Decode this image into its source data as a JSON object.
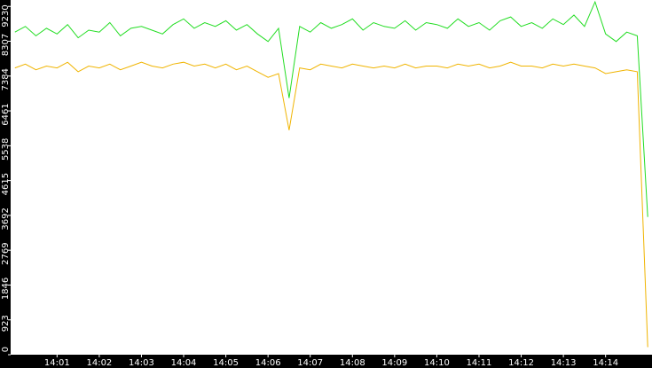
{
  "chart_data": {
    "type": "line",
    "x": [
      840,
      840.25,
      840.5,
      840.75,
      841,
      841.25,
      841.5,
      841.75,
      842,
      842.25,
      842.5,
      842.75,
      843,
      843.25,
      843.5,
      843.75,
      844,
      844.25,
      844.5,
      844.75,
      845,
      845.25,
      845.5,
      845.75,
      846,
      846.25,
      846.5,
      846.75,
      847,
      847.25,
      847.5,
      847.75,
      848,
      848.25,
      848.5,
      848.75,
      849,
      849.25,
      849.5,
      849.75,
      850,
      850.25,
      850.5,
      850.75,
      851,
      851.25,
      851.5,
      851.75,
      852,
      852.25,
      852.5,
      852.75,
      853,
      853.25,
      853.5,
      853.75,
      854,
      854.25,
      854.5,
      854.75,
      855
    ],
    "series": [
      {
        "color": "#22dd22",
        "values": [
          8550,
          8700,
          8450,
          8650,
          8500,
          8750,
          8400,
          8600,
          8550,
          8800,
          8450,
          8650,
          8700,
          8600,
          8500,
          8750,
          8900,
          8650,
          8800,
          8700,
          8850,
          8600,
          8750,
          8500,
          8300,
          8650,
          6800,
          8700,
          8550,
          8800,
          8650,
          8750,
          8900,
          8600,
          8800,
          8700,
          8650,
          8850,
          8600,
          8800,
          8750,
          8650,
          8900,
          8700,
          8800,
          8600,
          8850,
          8950,
          8700,
          8800,
          8650,
          8900,
          8750,
          9000,
          8700,
          9350,
          8500,
          8300,
          8550,
          8450,
          3650
        ]
      },
      {
        "color": "#f0b400",
        "values": [
          7600,
          7700,
          7550,
          7650,
          7600,
          7750,
          7500,
          7650,
          7600,
          7700,
          7550,
          7650,
          7750,
          7650,
          7600,
          7700,
          7750,
          7650,
          7700,
          7600,
          7700,
          7550,
          7650,
          7500,
          7350,
          7450,
          5950,
          7600,
          7550,
          7700,
          7650,
          7600,
          7700,
          7650,
          7600,
          7650,
          7600,
          7700,
          7600,
          7650,
          7650,
          7600,
          7700,
          7650,
          7700,
          7600,
          7650,
          7750,
          7650,
          7650,
          7600,
          7700,
          7650,
          7700,
          7650,
          7600,
          7450,
          7500,
          7550,
          7500,
          200
        ]
      }
    ],
    "xlim": [
      839.9,
      855.1
    ],
    "xticks": [
      {
        "value": 841,
        "label": "14:01"
      },
      {
        "value": 842,
        "label": "14:02"
      },
      {
        "value": 843,
        "label": "14:03"
      },
      {
        "value": 844,
        "label": "14:04"
      },
      {
        "value": 845,
        "label": "14:05"
      },
      {
        "value": 846,
        "label": "14:06"
      },
      {
        "value": 847,
        "label": "14:07"
      },
      {
        "value": 848,
        "label": "14:08"
      },
      {
        "value": 849,
        "label": "14:09"
      },
      {
        "value": 850,
        "label": "14:10"
      },
      {
        "value": 851,
        "label": "14:11"
      },
      {
        "value": 852,
        "label": "14:12"
      },
      {
        "value": 853,
        "label": "14:13"
      },
      {
        "value": 854,
        "label": "14:14"
      }
    ],
    "ylim": [
      0,
      9400
    ],
    "yticks": [
      0,
      923,
      1846,
      2769,
      3692,
      4615,
      5538,
      6461,
      7384,
      8307,
      9230
    ]
  }
}
